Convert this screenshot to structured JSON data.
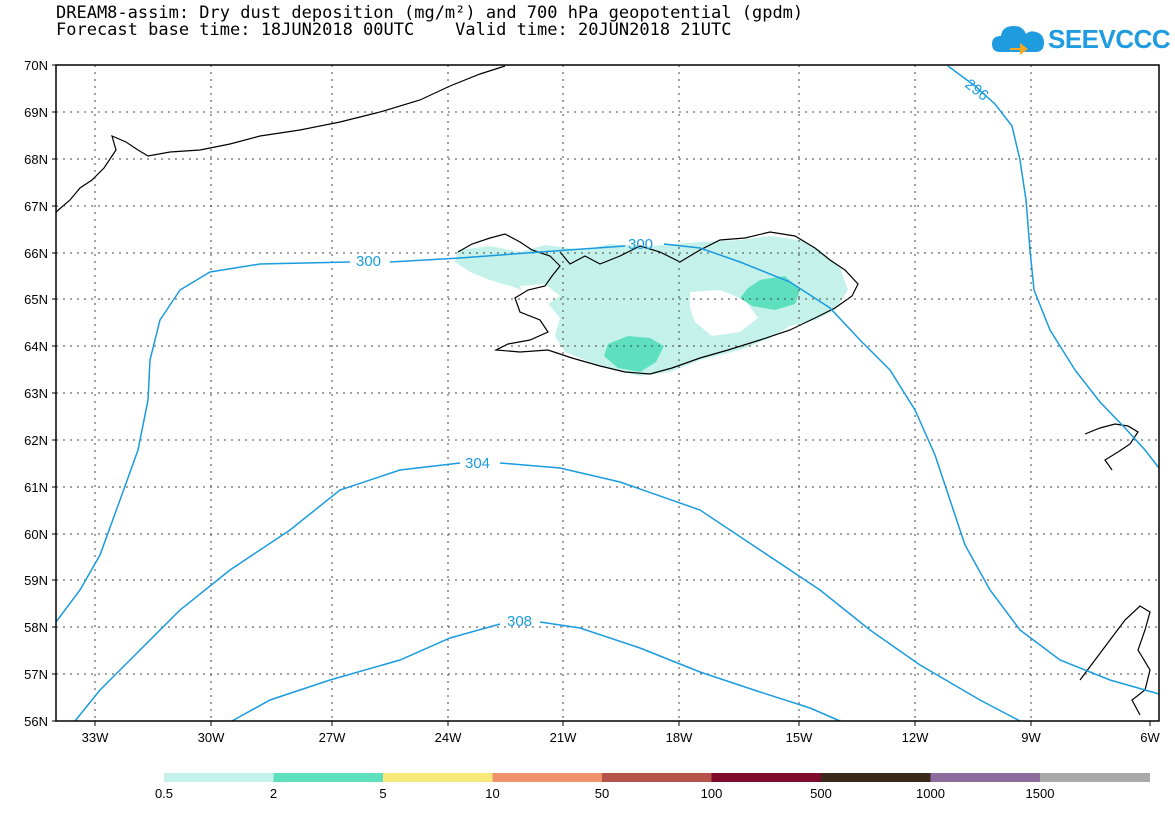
{
  "title": {
    "line1": "DREAM8-assim: Dry dust deposition (mg/m²) and 700 hPa geopotential (gpdm)",
    "line2": "Forecast base time: 18JUN2018 00UTC    Valid time: 20JUN2018 21UTC"
  },
  "logo": {
    "text": "SEEVCCC"
  },
  "axes": {
    "lat_labels": [
      "70N",
      "69N",
      "68N",
      "67N",
      "66N",
      "65N",
      "64N",
      "63N",
      "62N",
      "61N",
      "60N",
      "59N",
      "58N",
      "57N",
      "56N"
    ],
    "lon_labels": [
      "33W",
      "30W",
      "27W",
      "24W",
      "21W",
      "18W",
      "15W",
      "12W",
      "9W",
      "6W"
    ],
    "grid": true
  },
  "contours": [
    {
      "value": 296,
      "label": "296",
      "color": "#1a9be0"
    },
    {
      "value": 300,
      "label": "300",
      "color": "#1a9be0"
    },
    {
      "value": 304,
      "label": "304",
      "color": "#1a9be0"
    },
    {
      "value": 308,
      "label": "308",
      "color": "#1a9be0"
    }
  ],
  "legend": {
    "labels": [
      "0.5",
      "2",
      "5",
      "10",
      "50",
      "100",
      "500",
      "1000",
      "1500"
    ],
    "colors": [
      "#c4f2ea",
      "#5ee0bf",
      "#f9e97a",
      "#f0916d",
      "#b5524a",
      "#7f0a2b",
      "#3b2a1b",
      "#8c6d9d",
      "#a9a9a9"
    ]
  }
}
